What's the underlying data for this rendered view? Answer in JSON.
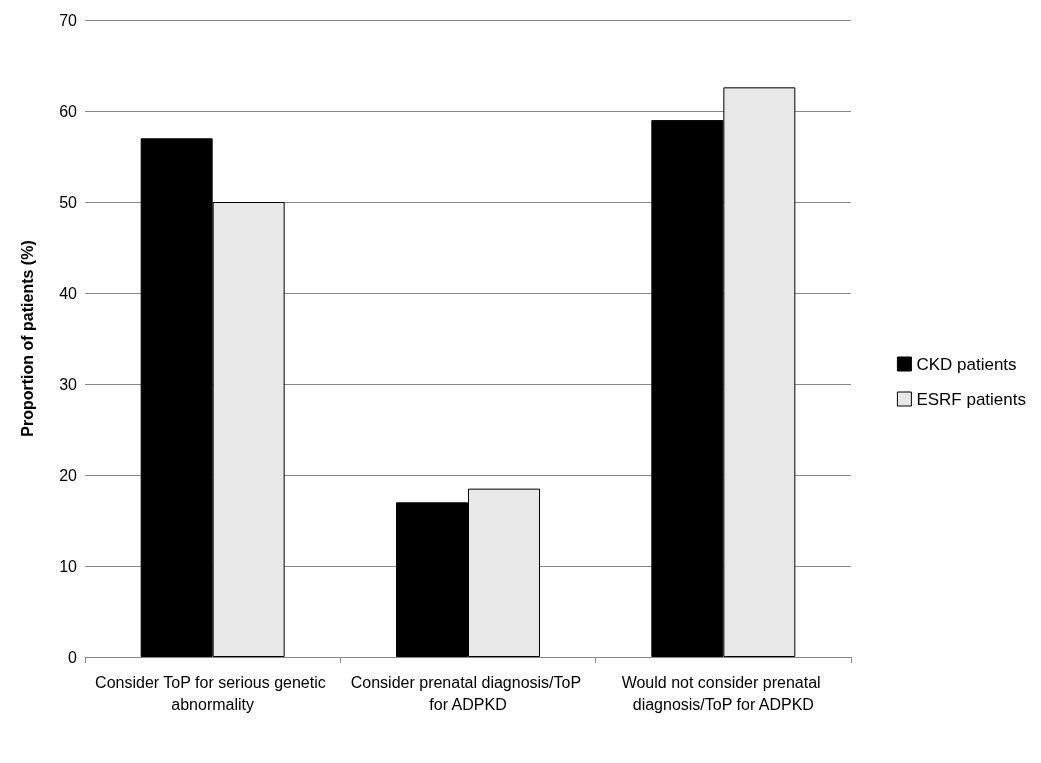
{
  "chart_data": {
    "type": "bar",
    "ylabel": "Proportion of patients (%)",
    "categories": [
      "Consider ToP for serious genetic abnormality",
      "Consider prenatal diagnosis/ToP for ADPKD",
      "Would not consider prenatal diagnosis/ToP for ADPKD"
    ],
    "series": [
      {
        "name": "CKD patients",
        "color": "#000000",
        "values": [
          57,
          17,
          59
        ]
      },
      {
        "name": "ESRF patients",
        "color": "#e8e8e8",
        "values": [
          50,
          18.5,
          62.6
        ]
      }
    ],
    "ylim": [
      0,
      70
    ],
    "yticks": [
      0,
      10,
      20,
      30,
      40,
      50,
      60,
      70
    ],
    "grid": "y",
    "legend": "right"
  }
}
